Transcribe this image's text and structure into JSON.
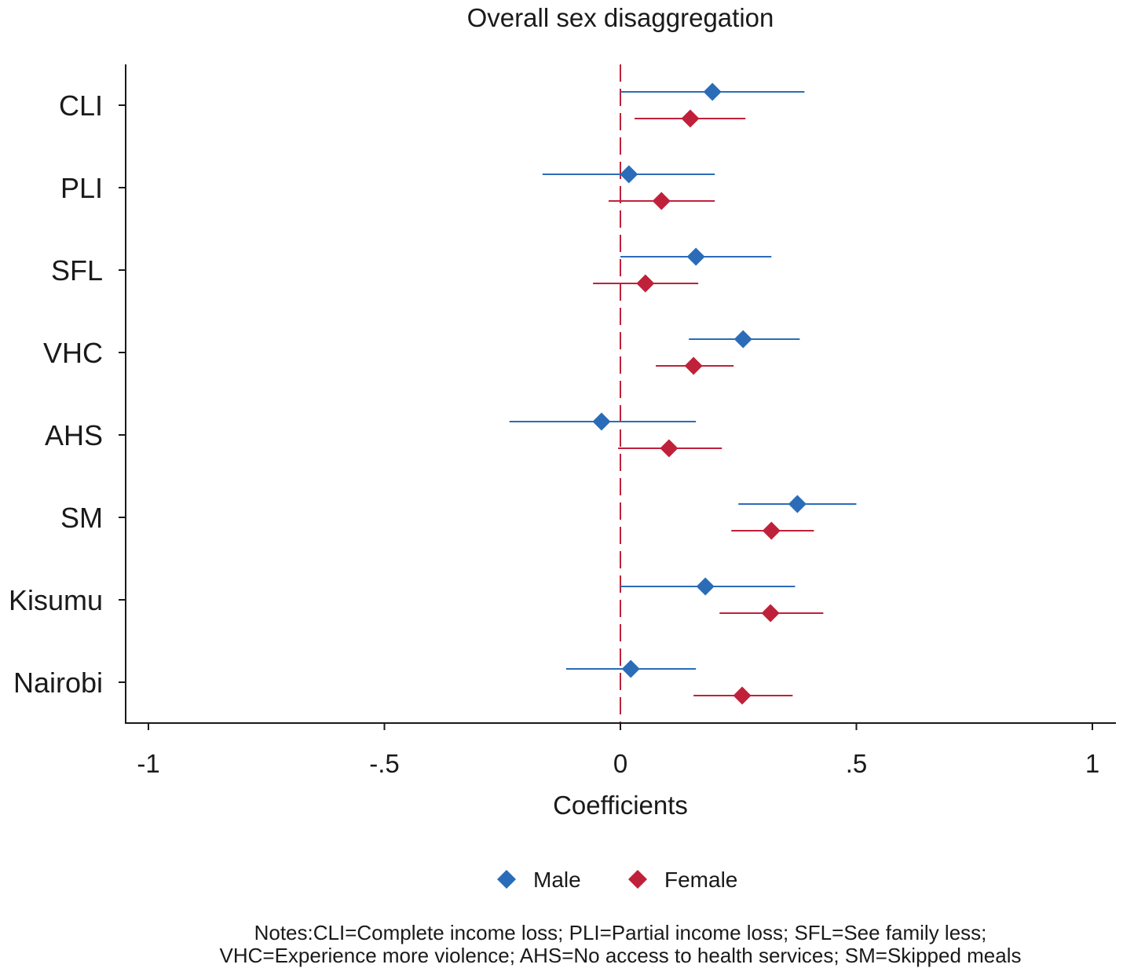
{
  "chart_data": {
    "type": "scatter",
    "title": "Overall sex disaggregation",
    "xlabel": "Coefficients",
    "ylabel": "",
    "xlim": [
      -1.05,
      1.05
    ],
    "x_ticks": [
      -1,
      -0.5,
      0,
      0.5,
      1
    ],
    "x_tick_labels": [
      "-1",
      "-.5",
      "0",
      ".5",
      "1"
    ],
    "reference_line": 0,
    "grid": false,
    "legend_position": "bottom",
    "categories": [
      "CLI",
      "PLI",
      "SFL",
      "VHC",
      "AHS",
      "SM",
      "Kisumu",
      "Nairobi"
    ],
    "series": [
      {
        "name": "Male",
        "color": "#2b6cb8",
        "estimates": [
          0.195,
          0.018,
          0.16,
          0.26,
          -0.04,
          0.375,
          0.18,
          0.022
        ],
        "ci_low": [
          0.0,
          -0.165,
          0.0,
          0.145,
          -0.235,
          0.25,
          0.0,
          -0.115
        ],
        "ci_high": [
          0.39,
          0.2,
          0.32,
          0.38,
          0.16,
          0.5,
          0.37,
          0.16
        ]
      },
      {
        "name": "Female",
        "color": "#c0213a",
        "estimates": [
          0.148,
          0.087,
          0.053,
          0.155,
          0.103,
          0.32,
          0.318,
          0.258
        ],
        "ci_low": [
          0.03,
          -0.025,
          -0.058,
          0.075,
          -0.005,
          0.235,
          0.21,
          0.155
        ],
        "ci_high": [
          0.265,
          0.2,
          0.165,
          0.24,
          0.215,
          0.41,
          0.43,
          0.365
        ]
      }
    ]
  },
  "notes": {
    "line1": "Notes:CLI=Complete income loss; PLI=Partial income loss; SFL=See family less;",
    "line2": "VHC=Experience more violence; AHS=No access to health services; SM=Skipped meals"
  }
}
